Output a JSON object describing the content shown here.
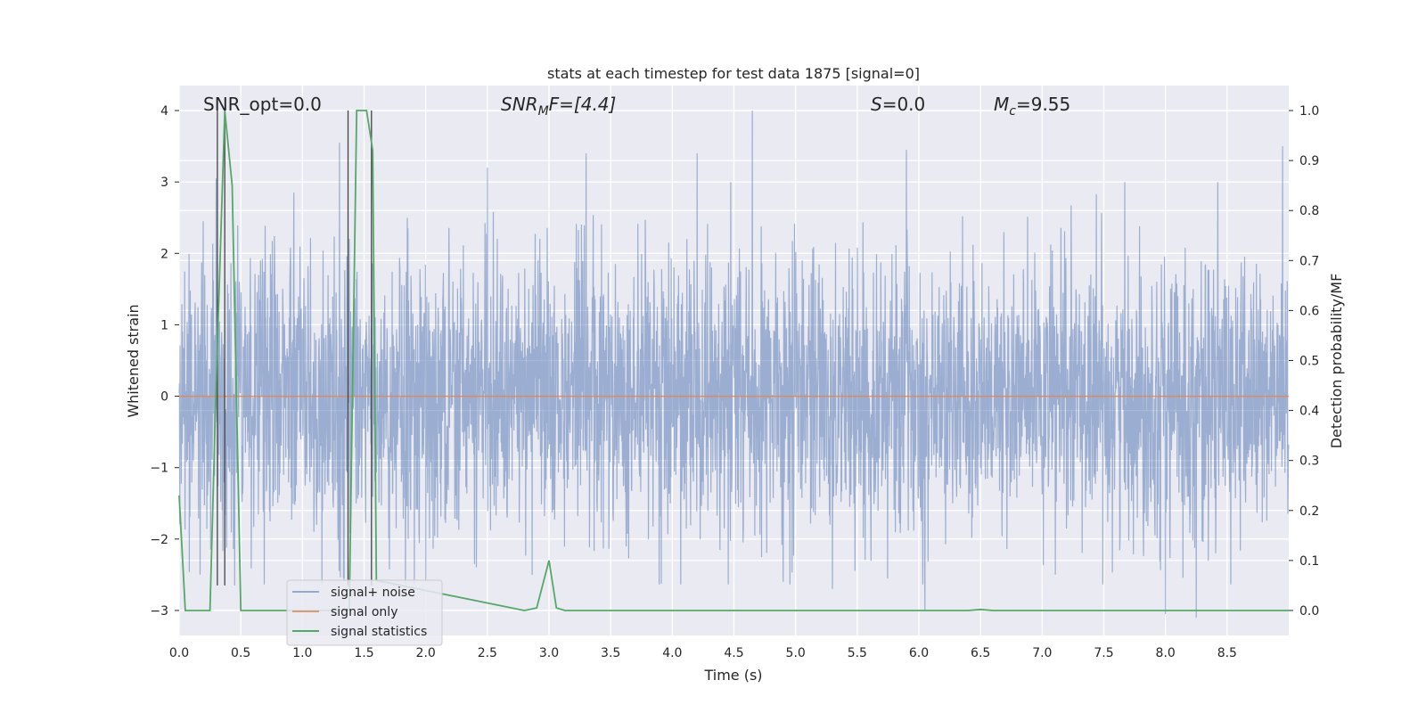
{
  "chart_data": {
    "type": "line",
    "title": "stats at each timestep for test data 1875 [signal=0]",
    "xlabel": "Time (s)",
    "ylabel_left": "Whitened strain",
    "ylabel_right": "Detection probability/MF",
    "xlim": [
      0.0,
      9.0
    ],
    "ylim_left": [
      -3.35,
      4.35
    ],
    "ylim_right": [
      -0.05,
      1.05
    ],
    "x_ticks": [
      "0.0",
      "0.5",
      "1.0",
      "1.5",
      "2.0",
      "2.5",
      "3.0",
      "3.5",
      "4.0",
      "4.5",
      "5.0",
      "5.5",
      "6.0",
      "6.5",
      "7.0",
      "7.5",
      "8.0",
      "8.5"
    ],
    "y_left_ticks": [
      "−3",
      "−2",
      "−1",
      "0",
      "1",
      "2",
      "3",
      "4"
    ],
    "y_right_ticks": [
      "0.0",
      "0.1",
      "0.2",
      "0.3",
      "0.4",
      "0.5",
      "0.6",
      "0.7",
      "0.8",
      "0.9",
      "1.0"
    ],
    "annotations": {
      "snr_opt": "SNR_opt=0.0",
      "snr_mf_base": "SNR",
      "snr_mf_sub": "M",
      "snr_mf_rest": "F=[4.4]",
      "s_label": "S",
      "s_rest": "=0.0",
      "mc_base": "M",
      "mc_sub": "c",
      "mc_rest": "=9.55"
    },
    "legend": {
      "position": "lower-left",
      "entries": [
        "signal+ noise",
        "signal only",
        "signal statistics"
      ]
    },
    "series": [
      {
        "name": "signal+ noise",
        "color": "#4c72b0",
        "description": "dense whitened noise trace approx. between -3.1 and 4.0",
        "noise_range": [
          -3.1,
          4.0
        ],
        "peaks": [
          [
            0.3,
            3.05
          ],
          [
            1.3,
            3.55
          ],
          [
            2.5,
            3.2
          ],
          [
            3.3,
            3.4
          ],
          [
            4.2,
            3.4
          ],
          [
            4.65,
            4.0
          ],
          [
            5.9,
            3.45
          ],
          [
            8.95,
            3.5
          ]
        ],
        "troughs": [
          [
            0.45,
            -2.65
          ],
          [
            2.0,
            -2.6
          ],
          [
            4.9,
            -2.6
          ],
          [
            5.3,
            -2.7
          ],
          [
            6.05,
            -3.0
          ],
          [
            8.0,
            -3.05
          ],
          [
            8.25,
            -3.1
          ]
        ]
      },
      {
        "name": "signal only",
        "color": "#dd8452",
        "x": [
          0.0,
          9.0
        ],
        "y": [
          0.0,
          0.0
        ]
      },
      {
        "name": "signal statistics",
        "color": "#55a868",
        "axis": "right",
        "x": [
          0.0,
          0.05,
          0.25,
          0.3,
          0.37,
          0.43,
          0.5,
          1.2,
          1.38,
          1.44,
          1.52,
          1.57,
          1.6,
          2.8,
          2.9,
          3.0,
          3.06,
          3.13,
          6.4,
          6.5,
          6.6,
          9.0
        ],
        "y": [
          0.23,
          0.0,
          0.0,
          0.45,
          1.0,
          0.85,
          0.0,
          0.0,
          0.0,
          1.0,
          1.0,
          0.92,
          0.06,
          0.0,
          0.005,
          0.1,
          0.005,
          0.0,
          0.0,
          0.002,
          0.0,
          0.0
        ]
      }
    ],
    "vertical_markers": [
      0.31,
      0.37,
      1.37,
      1.56
    ]
  }
}
